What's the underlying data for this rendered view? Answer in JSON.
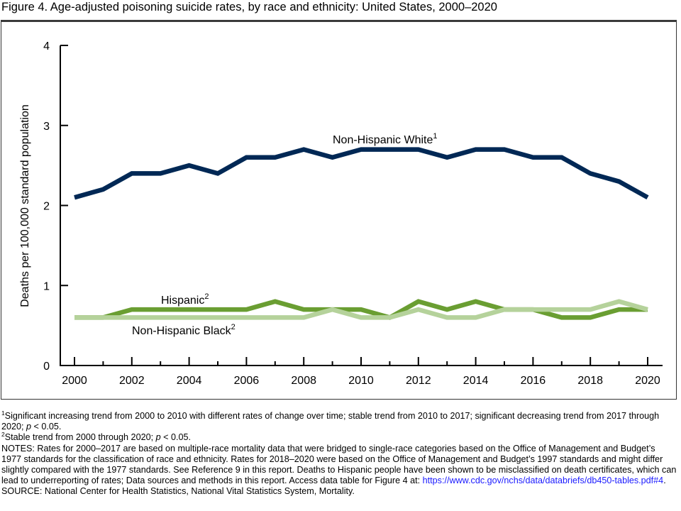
{
  "figure": {
    "title": "Figure 4. Age-adjusted poisoning suicide rates, by race and ethnicity: United States, 2000–2020"
  },
  "chart_data": {
    "type": "line",
    "title": "Figure 4. Age-adjusted poisoning suicide rates, by race and ethnicity: United States, 2000–2020",
    "xlabel": "",
    "ylabel": "Deaths per 100,000 standard population",
    "x": [
      2000,
      2001,
      2002,
      2003,
      2004,
      2005,
      2006,
      2007,
      2008,
      2009,
      2010,
      2011,
      2012,
      2013,
      2014,
      2015,
      2016,
      2017,
      2018,
      2019,
      2020
    ],
    "xlim": [
      2000,
      2020
    ],
    "ylim": [
      0,
      4
    ],
    "x_tick_labels": [
      "2000",
      "2002",
      "2004",
      "2006",
      "2008",
      "2010",
      "2012",
      "2014",
      "2016",
      "2018",
      "2020"
    ],
    "y_tick_labels": [
      "0",
      "1",
      "2",
      "3",
      "4"
    ],
    "grid": false,
    "legend": "inline labels",
    "series": [
      {
        "name": "Non-Hispanic White",
        "label": "Non-Hispanic White",
        "footnote": "1",
        "color": "#002855",
        "values": [
          2.1,
          2.2,
          2.4,
          2.4,
          2.5,
          2.4,
          2.6,
          2.6,
          2.7,
          2.6,
          2.7,
          2.7,
          2.7,
          2.6,
          2.7,
          2.7,
          2.6,
          2.6,
          2.4,
          2.3,
          2.1
        ]
      },
      {
        "name": "Hispanic",
        "label": "Hispanic",
        "footnote": "2",
        "color": "#6a9e32",
        "values": [
          0.6,
          0.6,
          0.7,
          0.7,
          0.7,
          0.7,
          0.7,
          0.8,
          0.7,
          0.7,
          0.7,
          0.6,
          0.8,
          0.7,
          0.8,
          0.7,
          0.7,
          0.6,
          0.6,
          0.7,
          0.7
        ]
      },
      {
        "name": "Non-Hispanic Black",
        "label": "Non-Hispanic Black",
        "footnote": "2",
        "color": "#b5d29b",
        "values": [
          0.6,
          0.6,
          0.6,
          0.6,
          0.6,
          0.6,
          0.6,
          0.6,
          0.6,
          0.7,
          0.6,
          0.6,
          0.7,
          0.6,
          0.6,
          0.7,
          0.7,
          0.7,
          0.7,
          0.8,
          0.7
        ]
      }
    ]
  },
  "notes": {
    "footnote1_marker": "1",
    "footnote1": "Significant increasing trend from 2000 to 2010 with different rates of change over time; stable trend from 2010 to 2017; significant decreasing trend from 2017 through 2020; ",
    "footnote1_p": "p",
    "footnote1_end": " < 0.05.",
    "footnote2_marker": "2",
    "footnote2": "Stable trend from 2000 through 2020; ",
    "footnote2_p": "p",
    "footnote2_end": " < 0.05.",
    "notes_text": "NOTES: Rates for 2000–2017 are based on multiple-race mortality data that were bridged to single-race categories based on the Office of Management and Budget’s 1977 standards for the classification of race and ethnicity. Rates for 2018–2020 were based on the Office of Management and Budget’s 1997 standards and might differ slightly compared with the 1977 standards. See Reference 9 in this report. Deaths to Hispanic people have been shown to be misclassified on death certificates, which can lead to underreporting of rates; Data sources and methods in this report. Access data table for Figure 4 at: ",
    "link_text": "https://www.cdc.gov/nchs/data/databriefs/db450-tables.pdf#4",
    "notes_end": ".",
    "source": "SOURCE: National Center for Health Statistics, National Vital Statistics System, Mortality."
  }
}
